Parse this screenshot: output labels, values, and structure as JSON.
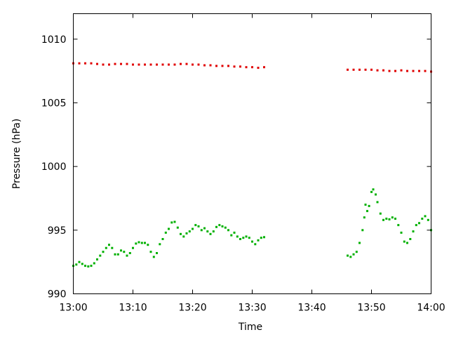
{
  "chart_data": {
    "type": "scatter",
    "xlabel": "Time",
    "ylabel": "Pressure (hPa)",
    "x_unit": "minutes after 13:00",
    "xlim": [
      0,
      60
    ],
    "ylim": [
      990,
      1012
    ],
    "xticks": [
      {
        "value": 0,
        "label": "13:00"
      },
      {
        "value": 10,
        "label": "13:10"
      },
      {
        "value": 20,
        "label": "13:20"
      },
      {
        "value": 30,
        "label": "13:30"
      },
      {
        "value": 40,
        "label": "13:40"
      },
      {
        "value": 50,
        "label": "13:50"
      },
      {
        "value": 60,
        "label": "14:00"
      }
    ],
    "yticks": [
      {
        "value": 990,
        "label": "990"
      },
      {
        "value": 995,
        "label": "995"
      },
      {
        "value": 1000,
        "label": "1000"
      },
      {
        "value": 1005,
        "label": "1005"
      },
      {
        "value": 1010,
        "label": "1010"
      }
    ],
    "grid": false,
    "legend": "none",
    "series": [
      {
        "color": "#e00000",
        "points": [
          [
            0,
            1008.1
          ],
          [
            1,
            1008.1
          ],
          [
            2,
            1008.1
          ],
          [
            3,
            1008.1
          ],
          [
            4,
            1008.05
          ],
          [
            5,
            1008.0
          ],
          [
            6,
            1008.0
          ],
          [
            7,
            1008.05
          ],
          [
            8,
            1008.05
          ],
          [
            9,
            1008.05
          ],
          [
            10,
            1008.0
          ],
          [
            11,
            1008.0
          ],
          [
            12,
            1008.0
          ],
          [
            13,
            1008.0
          ],
          [
            14,
            1008.0
          ],
          [
            15,
            1008.0
          ],
          [
            16,
            1008.0
          ],
          [
            17,
            1008.0
          ],
          [
            18,
            1008.05
          ],
          [
            19,
            1008.05
          ],
          [
            20,
            1008.0
          ],
          [
            21,
            1008.0
          ],
          [
            22,
            1007.95
          ],
          [
            23,
            1007.95
          ],
          [
            24,
            1007.9
          ],
          [
            25,
            1007.9
          ],
          [
            26,
            1007.9
          ],
          [
            27,
            1007.85
          ],
          [
            28,
            1007.85
          ],
          [
            29,
            1007.8
          ],
          [
            30,
            1007.8
          ],
          [
            31,
            1007.75
          ],
          [
            32,
            1007.8
          ],
          [
            46,
            1007.6
          ],
          [
            47,
            1007.6
          ],
          [
            48,
            1007.6
          ],
          [
            49,
            1007.6
          ],
          [
            50,
            1007.6
          ],
          [
            51,
            1007.55
          ],
          [
            52,
            1007.55
          ],
          [
            53,
            1007.5
          ],
          [
            54,
            1007.5
          ],
          [
            55,
            1007.55
          ],
          [
            56,
            1007.5
          ],
          [
            57,
            1007.5
          ],
          [
            58,
            1007.5
          ],
          [
            59,
            1007.5
          ],
          [
            60,
            1007.45
          ]
        ]
      },
      {
        "color": "#00b000",
        "points": [
          [
            0,
            992.2
          ],
          [
            0.5,
            992.3
          ],
          [
            1,
            992.5
          ],
          [
            1.5,
            992.35
          ],
          [
            2,
            992.2
          ],
          [
            2.5,
            992.15
          ],
          [
            3,
            992.2
          ],
          [
            3.5,
            992.4
          ],
          [
            4,
            992.7
          ],
          [
            4.5,
            993.0
          ],
          [
            5,
            993.3
          ],
          [
            5.5,
            993.6
          ],
          [
            6,
            993.85
          ],
          [
            6.5,
            993.6
          ],
          [
            7,
            993.1
          ],
          [
            7.5,
            993.1
          ],
          [
            8,
            993.4
          ],
          [
            8.5,
            993.3
          ],
          [
            9,
            993.0
          ],
          [
            9.5,
            993.2
          ],
          [
            10,
            993.6
          ],
          [
            10.5,
            993.95
          ],
          [
            11,
            994.05
          ],
          [
            11.5,
            994.0
          ],
          [
            12,
            994.0
          ],
          [
            12.5,
            993.85
          ],
          [
            13,
            993.3
          ],
          [
            13.5,
            992.9
          ],
          [
            14,
            993.2
          ],
          [
            14.5,
            993.9
          ],
          [
            15,
            994.3
          ],
          [
            15.5,
            994.8
          ],
          [
            16,
            995.1
          ],
          [
            16.5,
            995.6
          ],
          [
            17,
            995.65
          ],
          [
            17.5,
            995.2
          ],
          [
            18,
            994.7
          ],
          [
            18.5,
            994.5
          ],
          [
            19,
            994.75
          ],
          [
            19.5,
            994.9
          ],
          [
            20,
            995.1
          ],
          [
            20.5,
            995.4
          ],
          [
            21,
            995.3
          ],
          [
            21.5,
            995.0
          ],
          [
            22,
            995.15
          ],
          [
            22.5,
            994.9
          ],
          [
            23,
            994.7
          ],
          [
            23.5,
            994.9
          ],
          [
            24,
            995.25
          ],
          [
            24.5,
            995.4
          ],
          [
            25,
            995.3
          ],
          [
            25.5,
            995.2
          ],
          [
            26,
            995.0
          ],
          [
            26.5,
            994.6
          ],
          [
            27,
            994.8
          ],
          [
            27.5,
            994.5
          ],
          [
            28,
            994.3
          ],
          [
            28.5,
            994.4
          ],
          [
            29,
            994.5
          ],
          [
            29.5,
            994.4
          ],
          [
            30,
            994.1
          ],
          [
            30.5,
            993.9
          ],
          [
            31,
            994.2
          ],
          [
            31.5,
            994.4
          ],
          [
            32,
            994.45
          ],
          [
            46,
            993.0
          ],
          [
            46.5,
            992.9
          ],
          [
            47,
            993.1
          ],
          [
            47.5,
            993.3
          ],
          [
            48,
            994.0
          ],
          [
            48.5,
            995.0
          ],
          [
            48.8,
            996.0
          ],
          [
            49,
            997.0
          ],
          [
            49.3,
            996.5
          ],
          [
            49.6,
            996.9
          ],
          [
            50,
            998.0
          ],
          [
            50.3,
            998.2
          ],
          [
            50.7,
            997.8
          ],
          [
            51,
            997.2
          ],
          [
            51.5,
            996.3
          ],
          [
            52,
            995.8
          ],
          [
            52.5,
            995.9
          ],
          [
            53,
            995.85
          ],
          [
            53.5,
            996.0
          ],
          [
            54,
            995.9
          ],
          [
            54.5,
            995.4
          ],
          [
            55,
            994.8
          ],
          [
            55.5,
            994.1
          ],
          [
            56,
            994.0
          ],
          [
            56.5,
            994.3
          ],
          [
            57,
            994.9
          ],
          [
            57.5,
            995.4
          ],
          [
            58,
            995.55
          ],
          [
            58.5,
            995.9
          ],
          [
            59,
            996.1
          ],
          [
            59.5,
            995.8
          ],
          [
            60,
            995.0
          ]
        ]
      }
    ]
  }
}
